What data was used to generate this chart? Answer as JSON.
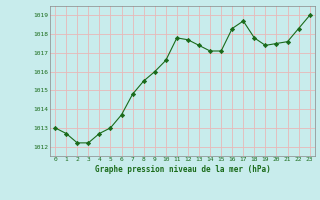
{
  "x": [
    0,
    1,
    2,
    3,
    4,
    5,
    6,
    7,
    8,
    9,
    10,
    11,
    12,
    13,
    14,
    15,
    16,
    17,
    18,
    19,
    20,
    21,
    22,
    23
  ],
  "y": [
    1013.0,
    1012.7,
    1012.2,
    1012.2,
    1012.7,
    1013.0,
    1013.7,
    1014.8,
    1015.5,
    1016.0,
    1016.6,
    1017.8,
    1017.7,
    1017.4,
    1017.1,
    1017.1,
    1018.3,
    1018.7,
    1017.8,
    1017.4,
    1017.5,
    1017.6,
    1018.3,
    1019.0
  ],
  "line_color": "#1a6b1a",
  "marker": "D",
  "marker_size": 2.2,
  "bg_color": "#c8ecec",
  "grid_color": "#e8b8b8",
  "xlabel": "Graphe pression niveau de la mer (hPa)",
  "xlabel_color": "#1a6b1a",
  "tick_color": "#1a6b1a",
  "ylim": [
    1011.5,
    1019.5
  ],
  "yticks": [
    1012,
    1013,
    1014,
    1015,
    1016,
    1017,
    1018,
    1019
  ],
  "xticks": [
    0,
    1,
    2,
    3,
    4,
    5,
    6,
    7,
    8,
    9,
    10,
    11,
    12,
    13,
    14,
    15,
    16,
    17,
    18,
    19,
    20,
    21,
    22,
    23
  ],
  "xlim": [
    -0.5,
    23.5
  ]
}
